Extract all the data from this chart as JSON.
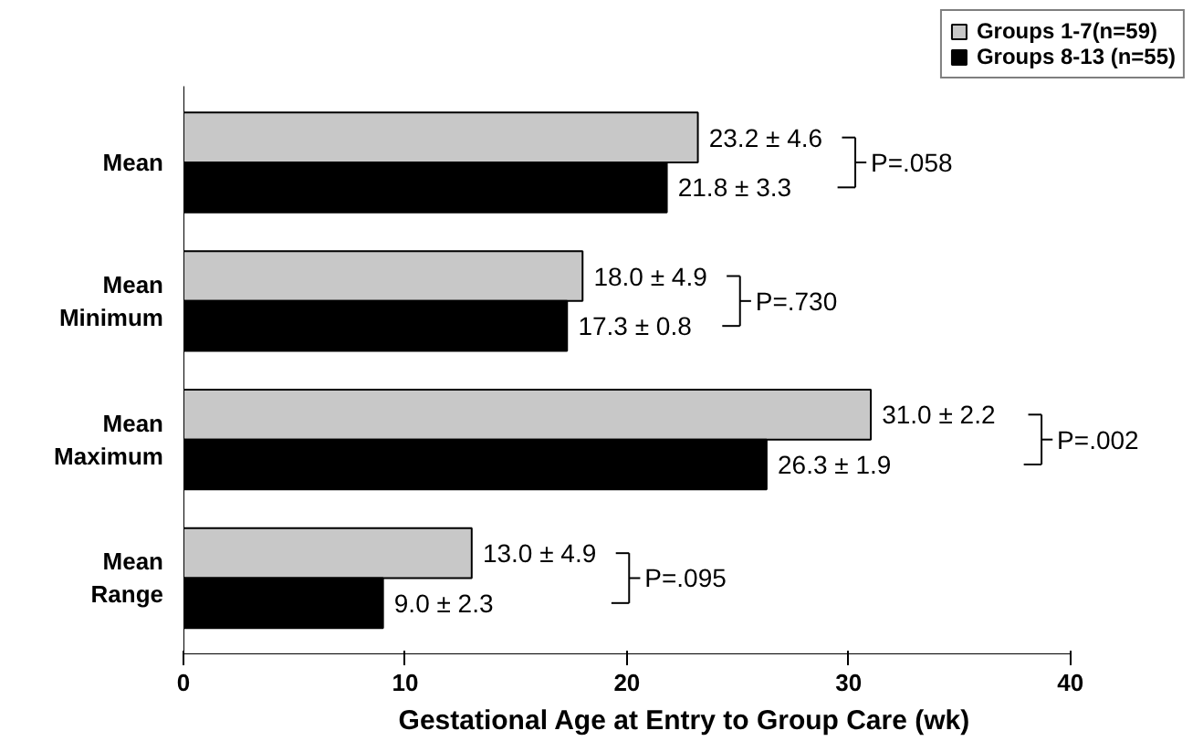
{
  "chart_data": {
    "type": "bar",
    "orientation": "horizontal",
    "xlabel": "Gestational Age at Entry to Group Care (wk)",
    "categories": [
      "Mean",
      "Mean\nMinimum",
      "Mean\nMaximum",
      "Mean\nRange"
    ],
    "series": [
      {
        "name": "Groups 1-7(n=59)",
        "color": "#c8c8c8",
        "values": [
          23.2,
          18.0,
          31.0,
          13.0
        ],
        "value_labels": [
          "23.2 ± 4.6",
          "18.0 ± 4.9",
          "31.0 ±  2.2",
          "13.0 ± 4.9"
        ]
      },
      {
        "name": "Groups 8-13 (n=55)",
        "color": "#000000",
        "values": [
          21.8,
          17.3,
          26.3,
          9.0
        ],
        "value_labels": [
          "21.8 ± 3.3",
          "17.3 ± 0.8",
          "26.3 ± 1.9",
          "9.0 ± 2.3"
        ]
      }
    ],
    "annotations": [
      "P=.058",
      "P=.730",
      "P=.002",
      "P=.095"
    ],
    "xlim": [
      0,
      40
    ],
    "xticks": [
      0,
      10,
      20,
      30,
      40
    ],
    "grid": false,
    "legend": "top right"
  }
}
